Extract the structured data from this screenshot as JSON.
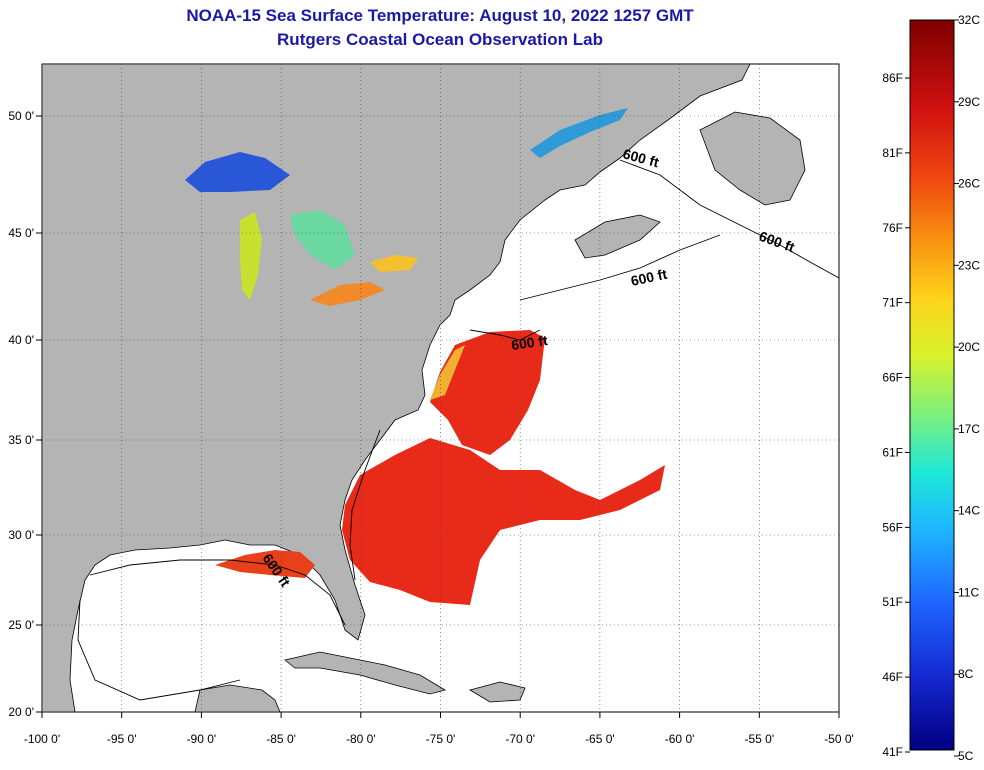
{
  "title": {
    "line1": "NOAA-15 Sea Surface Temperature:  August 10, 2022 1257 GMT",
    "line2": "Rutgers Coastal Ocean Observation Lab"
  },
  "map": {
    "lon_labels": [
      "-100 0'",
      "-95 0'",
      "-90 0'",
      "-85 0'",
      "-80 0'",
      "-75 0'",
      "-70 0'",
      "-65 0'",
      "-60 0'",
      "-55 0'",
      "-50 0'"
    ],
    "lat_labels": [
      "50 0'",
      "45 0'",
      "40 0'",
      "35 0'",
      "30 0'",
      "25 0'",
      "20 0'"
    ],
    "contour_labels": [
      "600 ft",
      "600 ft",
      "600 ft",
      "600 ft",
      "600 ft"
    ],
    "colors": {
      "land": "#b4b4b4",
      "ocean_nodata": "#ffffff",
      "coast": "#000000"
    }
  },
  "colorbar": {
    "celsius_labels": [
      "32C",
      "29C",
      "26C",
      "23C",
      "20C",
      "17C",
      "14C",
      "11C",
      "8C",
      "5C"
    ],
    "fahrenheit_labels": [
      "86F",
      "81F",
      "76F",
      "71F",
      "66F",
      "61F",
      "56F",
      "51F",
      "46F",
      "41F"
    ],
    "colors": [
      "#7f0000",
      "#d21a0f",
      "#f56a10",
      "#ffd21a",
      "#c8f53c",
      "#5ff0a0",
      "#1ee6ff",
      "#1e8cff",
      "#1432dc",
      "#000082"
    ]
  }
}
